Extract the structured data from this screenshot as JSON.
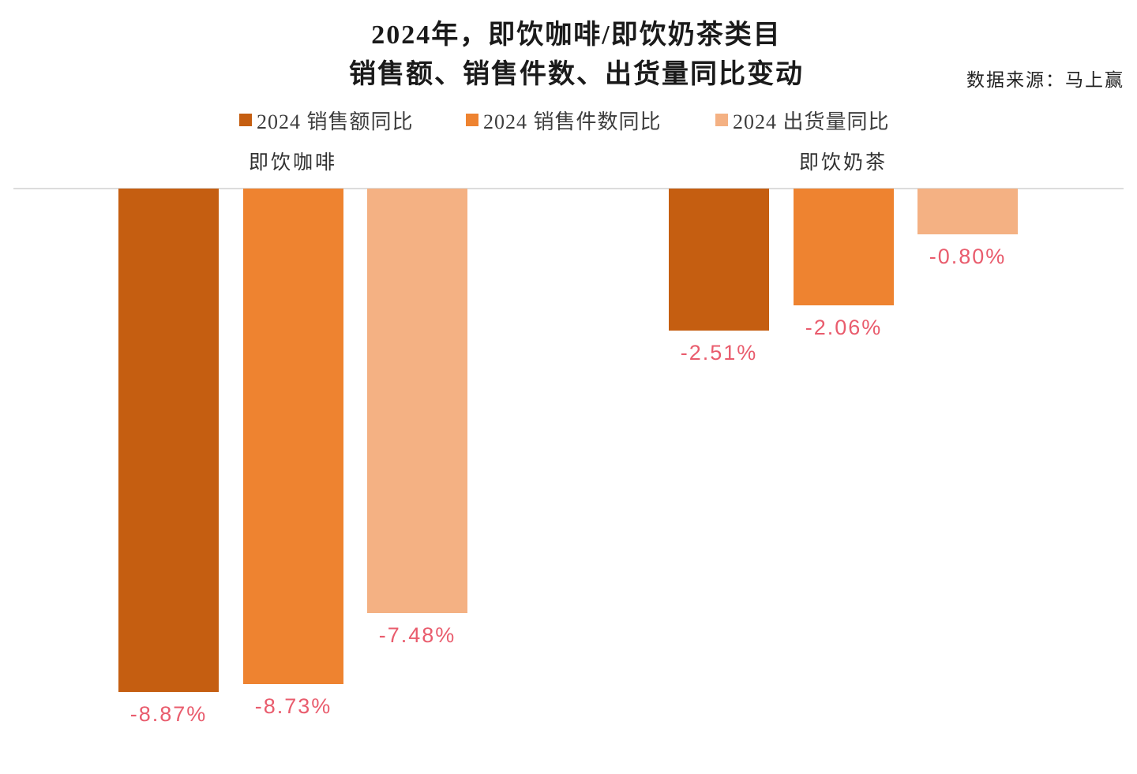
{
  "header": {
    "title_line1": "2024年，即饮咖啡/即饮奶茶类目",
    "title_line2": "销售额、销售件数、出货量同比变动",
    "source": "数据来源：马上赢"
  },
  "legend": {
    "items": [
      {
        "label": "2024 销售额同比",
        "color": "#C55E11"
      },
      {
        "label": "2024 销售件数同比",
        "color": "#EE8330"
      },
      {
        "label": "2024 出货量同比",
        "color": "#F4B183"
      }
    ]
  },
  "chart_data": {
    "type": "bar",
    "title": "2024年，即饮咖啡/即饮奶茶类目 销售额、销售件数、出货量同比变动",
    "source": "数据来源：马上赢",
    "categories": [
      "即饮咖啡",
      "即饮奶茶"
    ],
    "series": [
      {
        "name": "2024 销售额同比",
        "color": "#C55E11",
        "values": [
          -8.87,
          -2.51
        ],
        "labels": [
          "-8.87%",
          "-2.51%"
        ]
      },
      {
        "name": "2024 销售件数同比",
        "color": "#EE8330",
        "values": [
          -8.73,
          -2.06
        ],
        "labels": [
          "-8.73%",
          "-2.06%"
        ]
      },
      {
        "name": "2024 出货量同比",
        "color": "#F4B183",
        "values": [
          -7.48,
          -0.8
        ],
        "labels": [
          "-7.48%",
          "-0.80%"
        ]
      }
    ],
    "ylabel": "",
    "xlabel": "",
    "ylim": [
      -10,
      0
    ],
    "grid": false,
    "legend_position": "top",
    "value_label_color": "#E95C6D",
    "baseline_color": "#DCDCDC"
  }
}
